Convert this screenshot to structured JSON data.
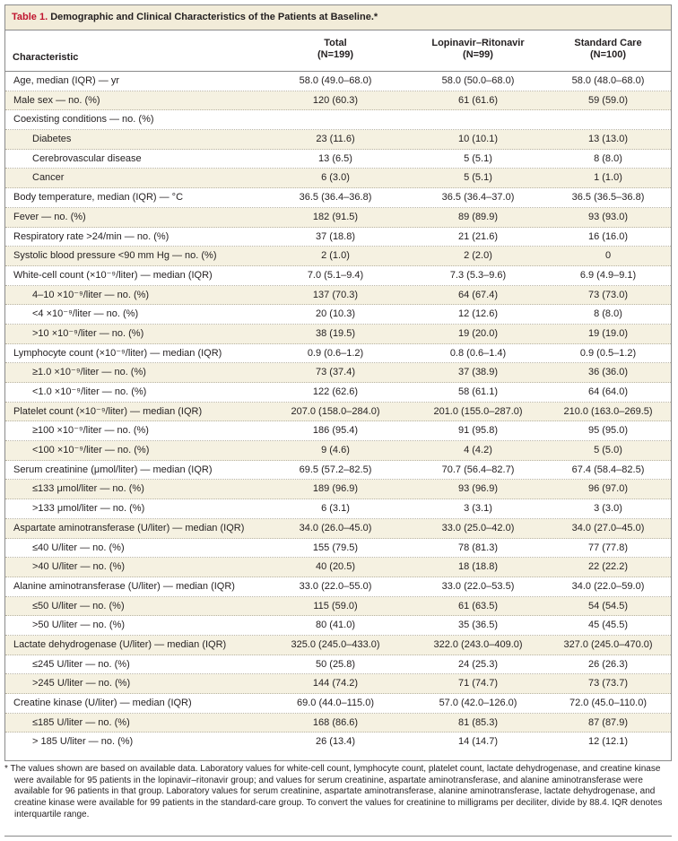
{
  "table": {
    "title_label": "Table 1.",
    "title_text": " Demographic and Clinical Characteristics of the Patients at Baseline.*",
    "headers": {
      "characteristic": "Characteristic",
      "total": "Total",
      "total_n": "(N=199)",
      "lopinavir": "Lopinavir–Ritonavir",
      "lopinavir_n": "(N=99)",
      "standard": "Standard Care",
      "standard_n": "(N=100)"
    },
    "rows": [
      {
        "label": "Age, median (IQR) — yr",
        "indent": false,
        "total": "58.0 (49.0–68.0)",
        "lopinavir": "58.0 (50.0–68.0)",
        "standard": "58.0 (48.0–68.0)"
      },
      {
        "label": "Male sex — no. (%)",
        "indent": false,
        "total": "120 (60.3)",
        "lopinavir": "61 (61.6)",
        "standard": "59 (59.0)"
      },
      {
        "label": "Coexisting conditions — no. (%)",
        "indent": false,
        "total": "",
        "lopinavir": "",
        "standard": ""
      },
      {
        "label": "Diabetes",
        "indent": true,
        "total": "23 (11.6)",
        "lopinavir": "10 (10.1)",
        "standard": "13 (13.0)"
      },
      {
        "label": "Cerebrovascular disease",
        "indent": true,
        "total": "13 (6.5)",
        "lopinavir": "5 (5.1)",
        "standard": "8 (8.0)"
      },
      {
        "label": "Cancer",
        "indent": true,
        "total": "6 (3.0)",
        "lopinavir": "5 (5.1)",
        "standard": "1 (1.0)"
      },
      {
        "label": "Body temperature, median (IQR) — °C",
        "indent": false,
        "total": "36.5 (36.4–36.8)",
        "lopinavir": "36.5 (36.4–37.0)",
        "standard": "36.5 (36.5–36.8)"
      },
      {
        "label": "Fever — no. (%)",
        "indent": false,
        "total": "182 (91.5)",
        "lopinavir": "89 (89.9)",
        "standard": "93 (93.0)"
      },
      {
        "label": "Respiratory rate >24/min — no. (%)",
        "indent": false,
        "total": "37 (18.8)",
        "lopinavir": "21 (21.6)",
        "standard": "16 (16.0)"
      },
      {
        "label": "Systolic blood pressure <90 mm Hg — no. (%)",
        "indent": false,
        "total": "2 (1.0)",
        "lopinavir": "2 (2.0)",
        "standard": "0"
      },
      {
        "label": "White-cell count (×10⁻⁹/liter) — median (IQR)",
        "indent": false,
        "total": "7.0 (5.1–9.4)",
        "lopinavir": "7.3 (5.3–9.6)",
        "standard": "6.9 (4.9–9.1)"
      },
      {
        "label": "4–10 ×10⁻⁹/liter — no. (%)",
        "indent": true,
        "total": "137 (70.3)",
        "lopinavir": "64 (67.4)",
        "standard": "73 (73.0)"
      },
      {
        "label": "<4 ×10⁻⁹/liter — no. (%)",
        "indent": true,
        "total": "20 (10.3)",
        "lopinavir": "12 (12.6)",
        "standard": "8 (8.0)"
      },
      {
        "label": ">10 ×10⁻⁹/liter — no. (%)",
        "indent": true,
        "total": "38 (19.5)",
        "lopinavir": "19 (20.0)",
        "standard": "19 (19.0)"
      },
      {
        "label": "Lymphocyte count (×10⁻⁹/liter) — median (IQR)",
        "indent": false,
        "total": "0.9 (0.6–1.2)",
        "lopinavir": "0.8 (0.6–1.4)",
        "standard": "0.9 (0.5–1.2)"
      },
      {
        "label": "≥1.0 ×10⁻⁹/liter — no. (%)",
        "indent": true,
        "total": "73 (37.4)",
        "lopinavir": "37 (38.9)",
        "standard": "36 (36.0)"
      },
      {
        "label": "<1.0 ×10⁻⁹/liter — no. (%)",
        "indent": true,
        "total": "122 (62.6)",
        "lopinavir": "58 (61.1)",
        "standard": "64 (64.0)"
      },
      {
        "label": "Platelet count (×10⁻⁹/liter) — median (IQR)",
        "indent": false,
        "total": "207.0 (158.0–284.0)",
        "lopinavir": "201.0 (155.0–287.0)",
        "standard": "210.0 (163.0–269.5)"
      },
      {
        "label": "≥100 ×10⁻⁹/liter — no. (%)",
        "indent": true,
        "total": "186 (95.4)",
        "lopinavir": "91 (95.8)",
        "standard": "95 (95.0)"
      },
      {
        "label": "<100 ×10⁻⁹/liter — no. (%)",
        "indent": true,
        "total": "9 (4.6)",
        "lopinavir": "4 (4.2)",
        "standard": "5 (5.0)"
      },
      {
        "label": "Serum creatinine (μmol/liter) — median (IQR)",
        "indent": false,
        "total": "69.5 (57.2–82.5)",
        "lopinavir": "70.7 (56.4–82.7)",
        "standard": "67.4 (58.4–82.5)"
      },
      {
        "label": "≤133 μmol/liter — no. (%)",
        "indent": true,
        "total": "189 (96.9)",
        "lopinavir": "93 (96.9)",
        "standard": "96 (97.0)"
      },
      {
        "label": ">133 μmol/liter — no. (%)",
        "indent": true,
        "total": "6 (3.1)",
        "lopinavir": "3 (3.1)",
        "standard": "3 (3.0)"
      },
      {
        "label": "Aspartate aminotransferase (U/liter) — median (IQR)",
        "indent": false,
        "total": "34.0 (26.0–45.0)",
        "lopinavir": "33.0 (25.0–42.0)",
        "standard": "34.0 (27.0–45.0)"
      },
      {
        "label": "≤40 U/liter — no. (%)",
        "indent": true,
        "total": "155 (79.5)",
        "lopinavir": "78 (81.3)",
        "standard": "77 (77.8)"
      },
      {
        "label": ">40 U/liter — no. (%)",
        "indent": true,
        "total": "40 (20.5)",
        "lopinavir": "18 (18.8)",
        "standard": "22 (22.2)"
      },
      {
        "label": "Alanine aminotransferase (U/liter) — median (IQR)",
        "indent": false,
        "total": "33.0 (22.0–55.0)",
        "lopinavir": "33.0 (22.0–53.5)",
        "standard": "34.0 (22.0–59.0)"
      },
      {
        "label": "≤50 U/liter — no. (%)",
        "indent": true,
        "total": "115 (59.0)",
        "lopinavir": "61 (63.5)",
        "standard": "54 (54.5)"
      },
      {
        "label": ">50 U/liter — no. (%)",
        "indent": true,
        "total": "80 (41.0)",
        "lopinavir": "35 (36.5)",
        "standard": "45 (45.5)"
      },
      {
        "label": "Lactate dehydrogenase (U/liter) — median (IQR)",
        "indent": false,
        "total": "325.0 (245.0–433.0)",
        "lopinavir": "322.0 (243.0–409.0)",
        "standard": "327.0 (245.0–470.0)"
      },
      {
        "label": "≤245 U/liter — no. (%)",
        "indent": true,
        "total": "50 (25.8)",
        "lopinavir": "24 (25.3)",
        "standard": "26 (26.3)"
      },
      {
        "label": ">245 U/liter — no. (%)",
        "indent": true,
        "total": "144 (74.2)",
        "lopinavir": "71 (74.7)",
        "standard": "73 (73.7)"
      },
      {
        "label": "Creatine kinase (U/liter) — median (IQR)",
        "indent": false,
        "total": "69.0 (44.0–115.0)",
        "lopinavir": "57.0 (42.0–126.0)",
        "standard": "72.0 (45.0–110.0)"
      },
      {
        "label": "≤185 U/liter — no. (%)",
        "indent": true,
        "total": "168 (86.6)",
        "lopinavir": "81 (85.3)",
        "standard": "87 (87.9)"
      },
      {
        "label": "> 185 U/liter — no. (%)",
        "indent": true,
        "total": "26 (13.4)",
        "lopinavir": "14 (14.7)",
        "standard": "12 (12.1)"
      }
    ],
    "footnote": "* The values shown are based on available data. Laboratory values for white-cell count, lymphocyte count, platelet count, lactate dehydrogenase, and creatine kinase were available for 95 patients in the lopinavir–ritonavir group; and values for serum creatinine, aspartate aminotransferase, and alanine aminotransferase were available for 96 patients in that group. Laboratory values for serum creatinine, aspartate aminotransferase, alanine aminotransferase, lactate dehydrogenase, and creatine kinase were available for 99 patients in the standard-care group. To convert the values for creatinine to milligrams per deciliter, divide by 88.4. IQR denotes interquartile range."
  },
  "colors": {
    "title_label": "#c0152f",
    "title_bar_bg": "#f2ecd9",
    "shaded_row_bg": "#f5f1e1",
    "border": "#8a8a8a"
  }
}
